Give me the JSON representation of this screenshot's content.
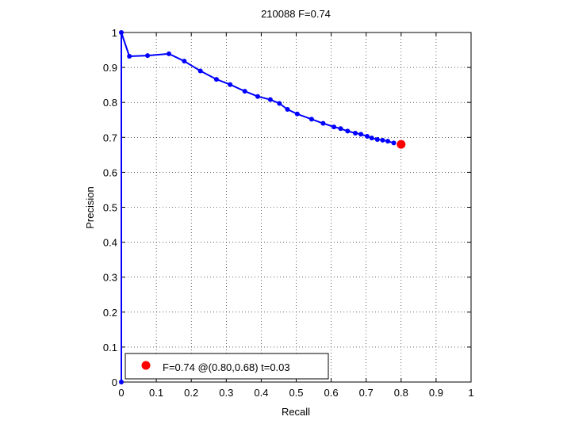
{
  "chart_data": {
    "type": "line",
    "title": "210088 F=0.74",
    "xlabel": "Recall",
    "ylabel": "Precision",
    "xlim": [
      0,
      1
    ],
    "ylim": [
      0,
      1
    ],
    "xticks": [
      "0",
      "0.1",
      "0.2",
      "0.3",
      "0.4",
      "0.5",
      "0.6",
      "0.7",
      "0.8",
      "0.9",
      "1"
    ],
    "yticks": [
      "0",
      "0.1",
      "0.2",
      "0.3",
      "0.4",
      "0.5",
      "0.6",
      "0.7",
      "0.8",
      "0.9",
      "1"
    ],
    "grid": true,
    "legend_position": "bottom-left",
    "colors": {
      "curve": "#0000ff",
      "best_point": "#ff0000"
    },
    "series": [
      {
        "values": [
          [
            0.0,
            0.0
          ],
          [
            0.0,
            1.0
          ],
          [
            0.023,
            0.932
          ],
          [
            0.075,
            0.934
          ],
          [
            0.136,
            0.939
          ],
          [
            0.18,
            0.918
          ],
          [
            0.226,
            0.89
          ],
          [
            0.272,
            0.866
          ],
          [
            0.311,
            0.851
          ],
          [
            0.353,
            0.832
          ],
          [
            0.39,
            0.817
          ],
          [
            0.426,
            0.808
          ],
          [
            0.452,
            0.797
          ],
          [
            0.475,
            0.78
          ],
          [
            0.503,
            0.767
          ],
          [
            0.544,
            0.752
          ],
          [
            0.577,
            0.74
          ],
          [
            0.608,
            0.73
          ],
          [
            0.627,
            0.725
          ],
          [
            0.647,
            0.718
          ],
          [
            0.669,
            0.712
          ],
          [
            0.685,
            0.709
          ],
          [
            0.703,
            0.703
          ],
          [
            0.716,
            0.698
          ],
          [
            0.732,
            0.694
          ],
          [
            0.747,
            0.692
          ],
          [
            0.762,
            0.689
          ],
          [
            0.779,
            0.684
          ]
        ]
      }
    ],
    "best_point": {
      "recall": 0.8,
      "precision": 0.68,
      "legend_label": "F=0.74 @(0.80,0.68) t=0.03"
    }
  }
}
